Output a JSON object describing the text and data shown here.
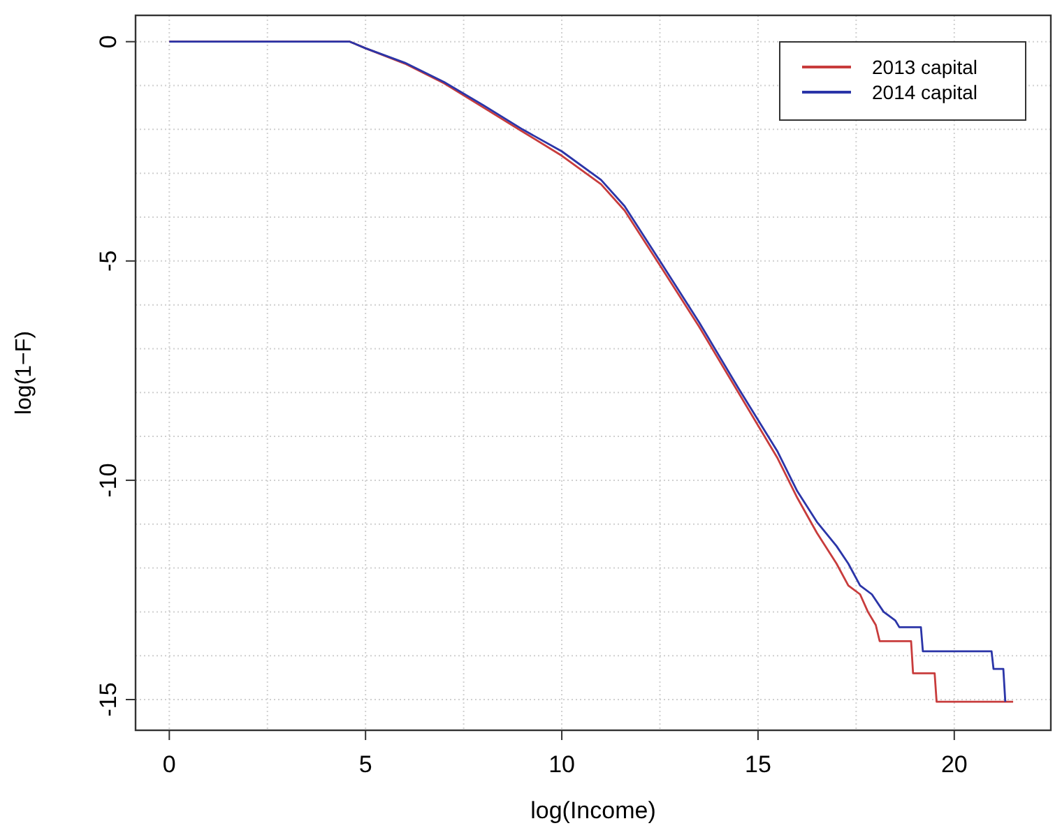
{
  "chart_data": {
    "type": "line",
    "xlabel": "log(Income)",
    "ylabel": "log(1−F)",
    "xlim": [
      -0.86,
      22.46
    ],
    "ylim": [
      -15.7,
      0.6
    ],
    "xticks": [
      0,
      {
        "value": 2.5,
        "label": null
      },
      5,
      {
        "value": 7.5,
        "label": null
      },
      10,
      {
        "value": 12.5,
        "label": null
      },
      15,
      {
        "value": 17.5,
        "label": null
      },
      20
    ],
    "yticks": [
      {
        "value": -15,
        "label": "-15"
      },
      {
        "value": -14,
        "label": null
      },
      {
        "value": -13,
        "label": null
      },
      {
        "value": -12,
        "label": null
      },
      {
        "value": -11,
        "label": null
      },
      {
        "value": -10,
        "label": "-10"
      },
      {
        "value": -9,
        "label": null
      },
      {
        "value": -8,
        "label": null
      },
      {
        "value": -7,
        "label": null
      },
      {
        "value": -6,
        "label": null
      },
      {
        "value": -5,
        "label": "-5"
      },
      {
        "value": -4,
        "label": null
      },
      {
        "value": -3,
        "label": null
      },
      {
        "value": -2,
        "label": null
      },
      {
        "value": -1,
        "label": null
      },
      0
    ],
    "grid": true,
    "legend": "top right",
    "line_style": "solid",
    "marker": "none",
    "series": [
      {
        "name": "2013 capital",
        "color": "#c83c3c",
        "x": [
          0,
          4.6,
          5,
          6,
          7,
          8,
          9,
          10,
          11,
          11.6,
          12.5,
          13.5,
          14.5,
          15.5,
          16,
          16.5,
          17,
          17.3,
          17.6,
          17.8,
          18.0,
          18.1,
          18.9,
          18.95,
          19.5,
          19.55,
          21.5
        ],
        "values": [
          0,
          0,
          -0.15,
          -0.5,
          -0.95,
          -1.5,
          -2.05,
          -2.6,
          -3.25,
          -3.85,
          -5.1,
          -6.5,
          -8.0,
          -9.5,
          -10.4,
          -11.2,
          -11.9,
          -12.4,
          -12.6,
          -13.0,
          -13.3,
          -13.67,
          -13.67,
          -14.4,
          -14.4,
          -15.05,
          -15.05
        ]
      },
      {
        "name": "2014 capital",
        "color": "#2b35a8",
        "x": [
          0,
          4.6,
          5,
          6,
          7,
          8,
          9,
          10,
          11,
          11.6,
          12.5,
          13.5,
          14.5,
          15.5,
          16,
          16.5,
          17,
          17.3,
          17.6,
          17.9,
          18.2,
          18.5,
          18.6,
          19.15,
          19.2,
          20.95,
          21.0,
          21.25,
          21.3
        ],
        "values": [
          0,
          0,
          -0.15,
          -0.48,
          -0.92,
          -1.45,
          -2.0,
          -2.5,
          -3.15,
          -3.75,
          -5.0,
          -6.4,
          -7.9,
          -9.35,
          -10.25,
          -10.95,
          -11.5,
          -11.9,
          -12.4,
          -12.6,
          -13.0,
          -13.2,
          -13.35,
          -13.35,
          -13.9,
          -13.9,
          -14.3,
          -14.3,
          -15.05
        ]
      }
    ]
  }
}
